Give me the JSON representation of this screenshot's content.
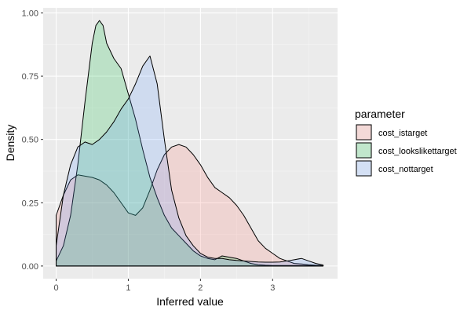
{
  "chart_data": {
    "type": "area",
    "xlabel": "Inferred value",
    "ylabel": "Density",
    "xlim": [
      -0.18,
      3.9
    ],
    "ylim": [
      -0.05,
      1.02
    ],
    "xticks": [
      0,
      1,
      2,
      3
    ],
    "xtick_labels": [
      "0",
      "1",
      "2",
      "3"
    ],
    "yticks": [
      0,
      0.25,
      0.5,
      0.75,
      1.0
    ],
    "ytick_labels": [
      "0.00",
      "0.25",
      "0.50",
      "0.75",
      "1.00"
    ],
    "grid": true,
    "legend": {
      "title": "parameter",
      "position": "right"
    },
    "series": [
      {
        "name": "cost_istarget",
        "fill": "#f8766d",
        "x": [
          0,
          0.1,
          0.2,
          0.3,
          0.4,
          0.5,
          0.6,
          0.7,
          0.8,
          0.9,
          1.0,
          1.1,
          1.2,
          1.3,
          1.4,
          1.5,
          1.6,
          1.7,
          1.8,
          1.9,
          2.0,
          2.1,
          2.2,
          2.3,
          2.4,
          2.5,
          2.6,
          2.7,
          2.8,
          2.9,
          3.0,
          3.1,
          3.2,
          3.3,
          3.4,
          3.5,
          3.6,
          3.7
        ],
        "y": [
          0.2,
          0.28,
          0.34,
          0.36,
          0.355,
          0.35,
          0.34,
          0.32,
          0.29,
          0.25,
          0.21,
          0.2,
          0.23,
          0.3,
          0.38,
          0.44,
          0.47,
          0.48,
          0.47,
          0.44,
          0.4,
          0.35,
          0.31,
          0.29,
          0.27,
          0.24,
          0.2,
          0.15,
          0.1,
          0.07,
          0.05,
          0.03,
          0.02,
          0.01,
          0.008,
          0.005,
          0.003,
          0.002
        ]
      },
      {
        "name": "cost_lookslikettarget",
        "display_name": "cost_lookslikettarget",
        "fill": "#00ba38",
        "x": [
          0,
          0.1,
          0.2,
          0.3,
          0.4,
          0.5,
          0.55,
          0.6,
          0.65,
          0.7,
          0.8,
          0.9,
          1.0,
          1.1,
          1.2,
          1.3,
          1.4,
          1.5,
          1.6,
          1.7,
          1.8,
          1.9,
          2.0,
          2.1,
          2.2,
          2.3,
          2.4,
          2.5,
          2.6,
          2.7,
          2.8,
          2.9,
          3.0,
          3.1,
          3.2,
          3.3,
          3.4,
          3.5,
          3.6,
          3.7
        ],
        "y": [
          0.02,
          0.08,
          0.2,
          0.4,
          0.65,
          0.88,
          0.95,
          0.97,
          0.95,
          0.88,
          0.82,
          0.78,
          0.68,
          0.58,
          0.46,
          0.35,
          0.27,
          0.2,
          0.15,
          0.12,
          0.09,
          0.06,
          0.04,
          0.03,
          0.025,
          0.04,
          0.035,
          0.03,
          0.02,
          0.01,
          0.005,
          0.003,
          0.002,
          0.002,
          0.002,
          0.002,
          0.002,
          0.002,
          0.001,
          0.001
        ]
      },
      {
        "name": "cost_nottarget",
        "fill": "#619cff",
        "x": [
          0,
          0.1,
          0.2,
          0.3,
          0.4,
          0.5,
          0.6,
          0.7,
          0.8,
          0.9,
          1.0,
          1.1,
          1.2,
          1.3,
          1.4,
          1.5,
          1.6,
          1.7,
          1.8,
          1.9,
          2.0,
          2.1,
          2.2,
          2.3,
          2.4,
          2.5,
          2.6,
          2.7,
          2.8,
          2.9,
          3.0,
          3.1,
          3.2,
          3.3,
          3.4,
          3.5,
          3.6,
          3.7
        ],
        "y": [
          0.08,
          0.28,
          0.4,
          0.47,
          0.49,
          0.48,
          0.5,
          0.53,
          0.57,
          0.62,
          0.66,
          0.72,
          0.79,
          0.83,
          0.72,
          0.5,
          0.3,
          0.19,
          0.12,
          0.08,
          0.05,
          0.035,
          0.03,
          0.03,
          0.025,
          0.022,
          0.02,
          0.018,
          0.016,
          0.015,
          0.015,
          0.016,
          0.02,
          0.025,
          0.03,
          0.02,
          0.01,
          0.004
        ]
      }
    ]
  }
}
